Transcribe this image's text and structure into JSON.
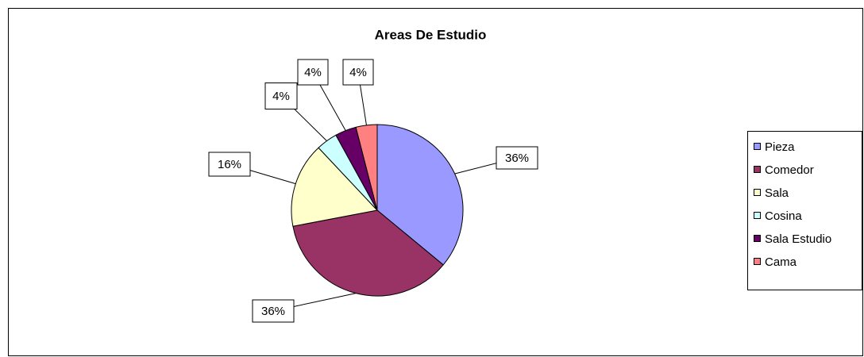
{
  "chart_data": {
    "type": "pie",
    "title": "Areas De Estudio",
    "categories": [
      "Pieza",
      "Comedor",
      "Sala",
      "Cosina",
      "Sala Estudio",
      "Cama"
    ],
    "values": [
      36,
      36,
      16,
      4,
      4,
      4
    ],
    "value_labels": [
      "36%",
      "36%",
      "16%",
      "4%",
      "4%",
      "4%"
    ],
    "colors": [
      "#9999ff",
      "#993366",
      "#ffffcc",
      "#ccffff",
      "#660066",
      "#ff8080"
    ],
    "legend": "right"
  }
}
